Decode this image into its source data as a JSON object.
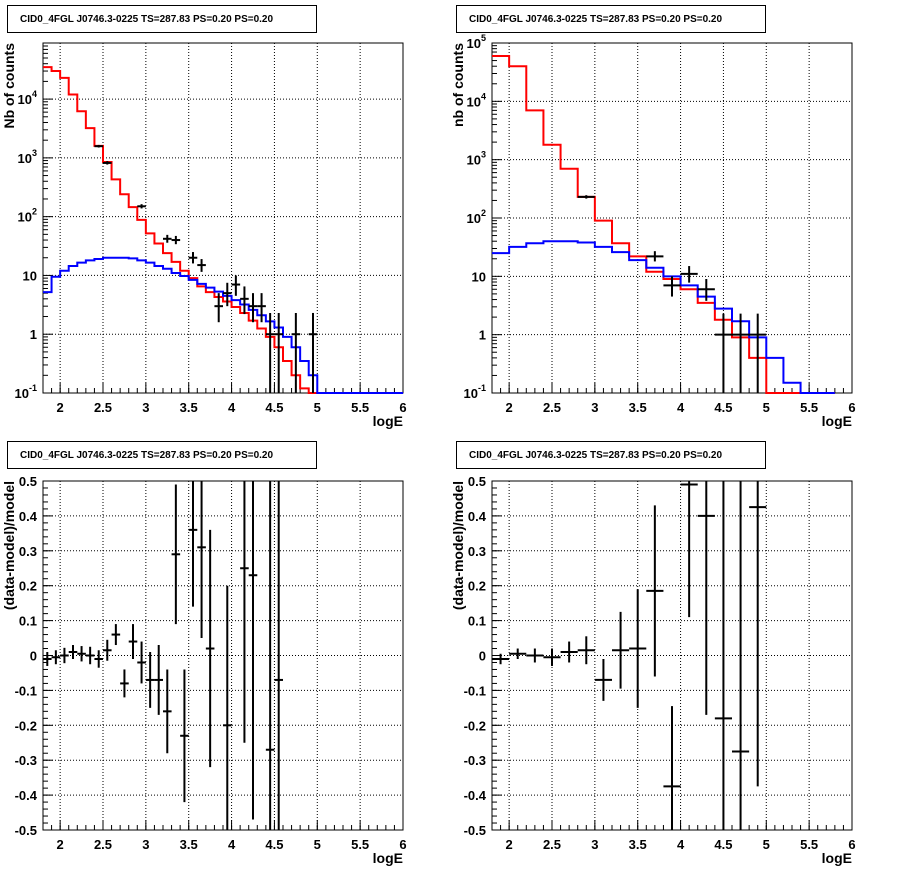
{
  "panels": [
    {
      "title": "CID0_4FGL J0746.3-0225 TS=287.83 PS=0.20 PS=0.20"
    },
    {
      "title": "CID0_4FGL J0746.3-0225 TS=287.83 PS=0.20 PS=0.20"
    },
    {
      "title": "CID0_4FGL J0746.3-0225 TS=287.83 PS=0.20 PS=0.20"
    },
    {
      "title": "CID0_4FGL J0746.3-0225 TS=287.83 PS=0.20 PS=0.20"
    }
  ],
  "colors": {
    "total_model": "#ff0000",
    "component": "#0000ff",
    "data": "#000000",
    "grid": "#000000"
  },
  "chart_data": [
    {
      "type": "line",
      "panel": "top-left",
      "title": "CID0_4FGL J0746.3-0225 TS=287.83 PS=0.20 PS=0.20",
      "xlabel": "logE",
      "ylabel": "Nb of counts",
      "xlim": [
        1.8,
        6.0
      ],
      "ylim": [
        0.1,
        90000
      ],
      "log_y": true,
      "grid": true,
      "x_ticks": [
        "2",
        "2.5",
        "3",
        "3.5",
        "4",
        "4.5",
        "5",
        "5.5",
        "6"
      ],
      "y_ticks": [
        "10^-1",
        "1",
        "10",
        "10^2",
        "10^3",
        "10^4"
      ],
      "bin_edges": [
        1.8,
        1.9,
        2.0,
        2.1,
        2.2,
        2.3,
        2.4,
        2.5,
        2.6,
        2.7,
        2.8,
        2.9,
        3.0,
        3.1,
        3.2,
        3.3,
        3.4,
        3.5,
        3.6,
        3.7,
        3.8,
        3.9,
        4.0,
        4.1,
        4.2,
        4.3,
        4.4,
        4.5,
        4.6,
        4.7,
        4.8,
        4.9,
        5.0,
        5.1,
        5.2,
        5.3,
        5.4,
        5.5,
        5.6,
        5.7,
        5.8,
        5.9,
        6.0
      ],
      "series": [
        {
          "style": "step",
          "color": "#ff0000",
          "values": [
            35000,
            30000,
            23000,
            12000,
            6200,
            3200,
            1600,
            850,
            430,
            240,
            145,
            88,
            52,
            35,
            24,
            17,
            12,
            9,
            6.5,
            5.2,
            4.3,
            3.6,
            2.9,
            2.3,
            1.7,
            1.25,
            0.9,
            0.6,
            0.35,
            0.2,
            0.12,
            0.1,
            0.1,
            0.1,
            0.1,
            0.1,
            0.1,
            0.1,
            0.1,
            0.1,
            0.1,
            0.1
          ]
        },
        {
          "style": "step",
          "color": "#0000ff",
          "values": [
            5.2,
            9.5,
            12,
            14.5,
            16.5,
            18,
            19,
            20,
            20,
            20,
            19.5,
            18,
            16.5,
            14.5,
            13,
            11,
            9.8,
            8.4,
            7.2,
            6.2,
            5.3,
            4.5,
            3.8,
            3.2,
            2.6,
            2.1,
            1.65,
            1.3,
            0.9,
            0.6,
            0.35,
            0.2,
            0.1,
            0.1,
            0.1,
            0.1,
            0.1,
            0.1,
            0.1,
            0.1,
            0.1,
            0.1
          ]
        },
        {
          "style": "points",
          "color": "#000000",
          "points": [
            {
              "x": 2.45,
              "y": 1580,
              "lo": 1500,
              "hi": 1660
            },
            {
              "x": 2.55,
              "y": 820,
              "lo": 770,
              "hi": 880
            },
            {
              "x": 2.95,
              "y": 150,
              "lo": 138,
              "hi": 163
            },
            {
              "x": 3.25,
              "y": 42,
              "lo": 36,
              "hi": 49
            },
            {
              "x": 3.35,
              "y": 40,
              "lo": 34,
              "hi": 47
            },
            {
              "x": 3.55,
              "y": 20,
              "lo": 16,
              "hi": 25
            },
            {
              "x": 3.65,
              "y": 15,
              "lo": 11.5,
              "hi": 19
            },
            {
              "x": 3.85,
              "y": 3,
              "lo": 1.6,
              "hi": 5
            },
            {
              "x": 3.95,
              "y": 5,
              "lo": 3,
              "hi": 7.5
            },
            {
              "x": 4.05,
              "y": 7,
              "lo": 4.5,
              "hi": 10
            },
            {
              "x": 4.15,
              "y": 4,
              "lo": 2.2,
              "hi": 6.5
            },
            {
              "x": 4.25,
              "y": 3,
              "lo": 1.6,
              "hi": 5
            },
            {
              "x": 4.35,
              "y": 3,
              "lo": 1.6,
              "hi": 5
            },
            {
              "x": 4.45,
              "y": 1,
              "lo": 0.1,
              "hi": 2.3
            },
            {
              "x": 4.55,
              "y": 1,
              "lo": 0.1,
              "hi": 2.3
            },
            {
              "x": 4.75,
              "y": 1,
              "lo": 0.1,
              "hi": 2.3
            },
            {
              "x": 4.95,
              "y": 1,
              "lo": 0.1,
              "hi": 2.3
            }
          ]
        }
      ]
    },
    {
      "type": "line",
      "panel": "top-right",
      "title": "CID0_4FGL J0746.3-0225 TS=287.83 PS=0.20 PS=0.20",
      "xlabel": "logE",
      "ylabel": "nb of counts",
      "xlim": [
        1.8,
        6.0
      ],
      "ylim": [
        0.1,
        100000
      ],
      "log_y": true,
      "grid": true,
      "x_ticks": [
        "2",
        "2.5",
        "3",
        "3.5",
        "4",
        "4.5",
        "5",
        "5.5",
        "6"
      ],
      "y_ticks": [
        "10^-1",
        "1",
        "10",
        "10^2",
        "10^3",
        "10^4",
        "10^5"
      ],
      "bin_edges": [
        1.8,
        2.0,
        2.2,
        2.4,
        2.6,
        2.8,
        3.0,
        3.2,
        3.4,
        3.6,
        3.8,
        4.0,
        4.2,
        4.4,
        4.6,
        4.8,
        5.0,
        5.2,
        5.4,
        5.6,
        5.8,
        6.0
      ],
      "series": [
        {
          "style": "step",
          "color": "#ff0000",
          "values": [
            60000,
            40000,
            7000,
            1800,
            700,
            230,
            90,
            37,
            22,
            12,
            9,
            6,
            3.5,
            1.8,
            0.9,
            0.4,
            0.1,
            0.1,
            0.1,
            0.1
          ]
        },
        {
          "style": "step",
          "color": "#0000ff",
          "values": [
            25,
            32,
            37,
            40,
            40,
            38,
            32,
            26,
            19,
            14,
            10,
            7,
            4.5,
            2.8,
            1.7,
            0.9,
            0.4,
            0.15,
            0.1,
            0.1
          ]
        },
        {
          "style": "points",
          "color": "#000000",
          "points": [
            {
              "x": 2.9,
              "y": 230,
              "lo": 215,
              "hi": 246
            },
            {
              "x": 3.7,
              "y": 22,
              "lo": 18,
              "hi": 27
            },
            {
              "x": 3.9,
              "y": 7,
              "lo": 4.5,
              "hi": 10
            },
            {
              "x": 4.1,
              "y": 11,
              "lo": 7.8,
              "hi": 15
            },
            {
              "x": 4.3,
              "y": 6,
              "lo": 3.8,
              "hi": 9
            },
            {
              "x": 4.5,
              "y": 1,
              "lo": 0.1,
              "hi": 2.3
            },
            {
              "x": 4.7,
              "y": 1,
              "lo": 0.1,
              "hi": 2.3
            },
            {
              "x": 4.9,
              "y": 1,
              "lo": 0.1,
              "hi": 2.3
            }
          ]
        }
      ]
    },
    {
      "type": "scatter",
      "panel": "bottom-left",
      "title": "CID0_4FGL J0746.3-0225 TS=287.83 PS=0.20 PS=0.20",
      "xlabel": "logE",
      "ylabel": "(data-model)/model",
      "xlim": [
        1.8,
        6.0
      ],
      "ylim": [
        -0.5,
        0.5
      ],
      "grid": true,
      "x_ticks": [
        "2",
        "2.5",
        "3",
        "3.5",
        "4",
        "4.5",
        "5",
        "5.5",
        "6"
      ],
      "y_ticks": [
        "-0.5",
        "-0.4",
        "-0.3",
        "-0.2",
        "-0.1",
        "0",
        "0.1",
        "0.2",
        "0.3",
        "0.4",
        "0.5"
      ],
      "bin_width": 0.1,
      "points": [
        {
          "x": 1.85,
          "y": -0.01,
          "err": 0.02
        },
        {
          "x": 1.95,
          "y": -0.005,
          "err": 0.02
        },
        {
          "x": 2.05,
          "y": 0.0,
          "err": 0.022
        },
        {
          "x": 2.15,
          "y": 0.01,
          "err": 0.02
        },
        {
          "x": 2.25,
          "y": 0.005,
          "err": 0.022
        },
        {
          "x": 2.35,
          "y": 0.0,
          "err": 0.025
        },
        {
          "x": 2.45,
          "y": -0.01,
          "err": 0.025
        },
        {
          "x": 2.55,
          "y": 0.015,
          "err": 0.03
        },
        {
          "x": 2.65,
          "y": 0.06,
          "err": 0.03
        },
        {
          "x": 2.75,
          "y": -0.08,
          "err": 0.04
        },
        {
          "x": 2.85,
          "y": 0.04,
          "err": 0.05
        },
        {
          "x": 2.95,
          "y": -0.02,
          "err": 0.06
        },
        {
          "x": 3.05,
          "y": -0.07,
          "err": 0.08
        },
        {
          "x": 3.15,
          "y": -0.07,
          "err": 0.1
        },
        {
          "x": 3.25,
          "y": -0.16,
          "err": 0.12
        },
        {
          "x": 3.35,
          "y": 0.29,
          "err": 0.2
        },
        {
          "x": 3.45,
          "y": -0.23,
          "err": 0.19
        },
        {
          "x": 3.55,
          "y": 0.36,
          "err": 0.22
        },
        {
          "x": 3.65,
          "y": 0.31,
          "err": 0.26
        },
        {
          "x": 3.75,
          "y": 0.02,
          "err": 0.34
        },
        {
          "x": 3.95,
          "y": -0.2,
          "err": 0.4
        },
        {
          "x": 4.15,
          "y": 0.25,
          "err": 0.5
        },
        {
          "x": 4.25,
          "y": 0.23,
          "err": 0.7
        },
        {
          "x": 4.45,
          "y": -0.27,
          "err": 0.8
        },
        {
          "x": 4.55,
          "y": -0.07,
          "err": 0.8
        }
      ]
    },
    {
      "type": "scatter",
      "panel": "bottom-right",
      "title": "CID0_4FGL J0746.3-0225 TS=287.83 PS=0.20 PS=0.20",
      "xlabel": "logE",
      "ylabel": "(data-model)/model",
      "xlim": [
        1.8,
        6.0
      ],
      "ylim": [
        -0.5,
        0.5
      ],
      "grid": true,
      "x_ticks": [
        "2",
        "2.5",
        "3",
        "3.5",
        "4",
        "4.5",
        "5",
        "5.5",
        "6"
      ],
      "y_ticks": [
        "-0.5",
        "-0.4",
        "-0.3",
        "-0.2",
        "-0.1",
        "0",
        "0.1",
        "0.2",
        "0.3",
        "0.4",
        "0.5"
      ],
      "bin_width": 0.2,
      "points": [
        {
          "x": 1.9,
          "y": -0.01,
          "err": 0.015
        },
        {
          "x": 2.1,
          "y": 0.005,
          "err": 0.015
        },
        {
          "x": 2.3,
          "y": 0.0,
          "err": 0.02
        },
        {
          "x": 2.5,
          "y": -0.005,
          "err": 0.025
        },
        {
          "x": 2.7,
          "y": 0.01,
          "err": 0.03
        },
        {
          "x": 2.9,
          "y": 0.015,
          "err": 0.04
        },
        {
          "x": 3.1,
          "y": -0.07,
          "err": 0.06
        },
        {
          "x": 3.3,
          "y": 0.015,
          "err": 0.11
        },
        {
          "x": 3.5,
          "y": 0.02,
          "err": 0.17
        },
        {
          "x": 3.7,
          "y": 0.185,
          "err": 0.245
        },
        {
          "x": 3.9,
          "y": -0.375,
          "err": 0.23
        },
        {
          "x": 4.1,
          "y": 0.49,
          "err": 0.38
        },
        {
          "x": 4.3,
          "y": 0.4,
          "err": 0.57
        },
        {
          "x": 4.5,
          "y": -0.18,
          "err": 0.7
        },
        {
          "x": 4.7,
          "y": -0.275,
          "err": 0.8
        },
        {
          "x": 4.9,
          "y": 0.425,
          "err": 0.8
        }
      ]
    }
  ]
}
